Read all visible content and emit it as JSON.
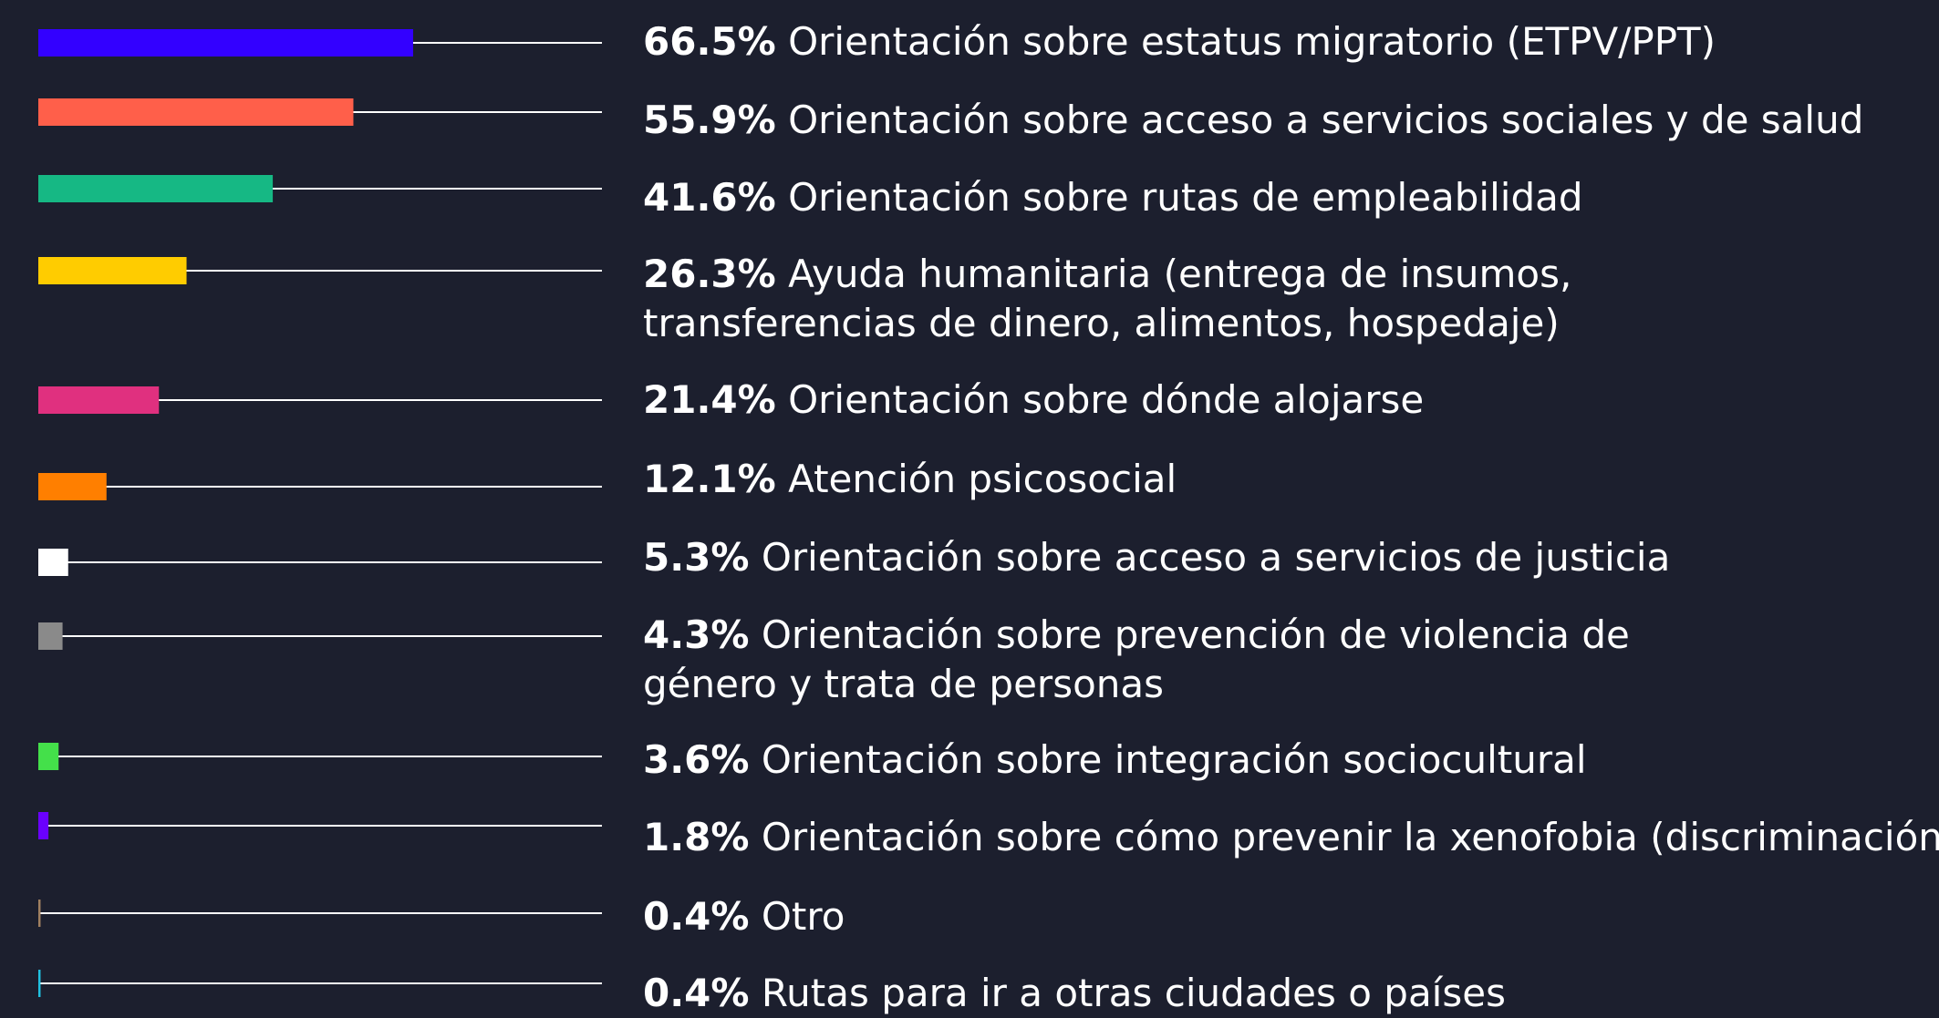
{
  "chart_data": {
    "type": "bar",
    "orientation": "horizontal",
    "categories": [
      "Orientación sobre estatus migratorio (ETPV/PPT)",
      "Orientación sobre acceso a servicios sociales y de salud",
      "Orientación sobre rutas de empleabilidad",
      "Ayuda humanitaria (entrega de insumos, transferencias de dinero, alimentos, hospedaje)",
      "Orientación sobre dónde alojarse",
      "Atención psicosocial",
      "Orientación sobre acceso a servicios de justicia",
      "Orientación sobre prevención de violencia de género y trata de personas",
      "Orientación sobre integración sociocultural",
      "Orientación sobre cómo prevenir la xenofobia (discriminación",
      "Otro",
      "Rutas para ir a otras ciudades o países"
    ],
    "values": [
      66.5,
      55.9,
      41.6,
      26.3,
      21.4,
      12.1,
      5.3,
      4.3,
      3.6,
      1.8,
      0.4,
      0.4
    ],
    "value_labels": [
      "66.5%",
      "55.9%",
      "41.6%",
      "26.3%",
      "21.4%",
      "12.1%",
      "5.3%",
      "4.3%",
      "3.6%",
      "1.8%",
      "0.4%",
      "0.4%"
    ],
    "colors": [
      "#3300ff",
      "#ff5f4a",
      "#16b884",
      "#ffcc00",
      "#e0307f",
      "#ff7f00",
      "#ffffff",
      "#8a8a8a",
      "#44e04a",
      "#6a00ff",
      "#a08060",
      "#20c0e0"
    ],
    "xlim": [
      0,
      100
    ]
  }
}
